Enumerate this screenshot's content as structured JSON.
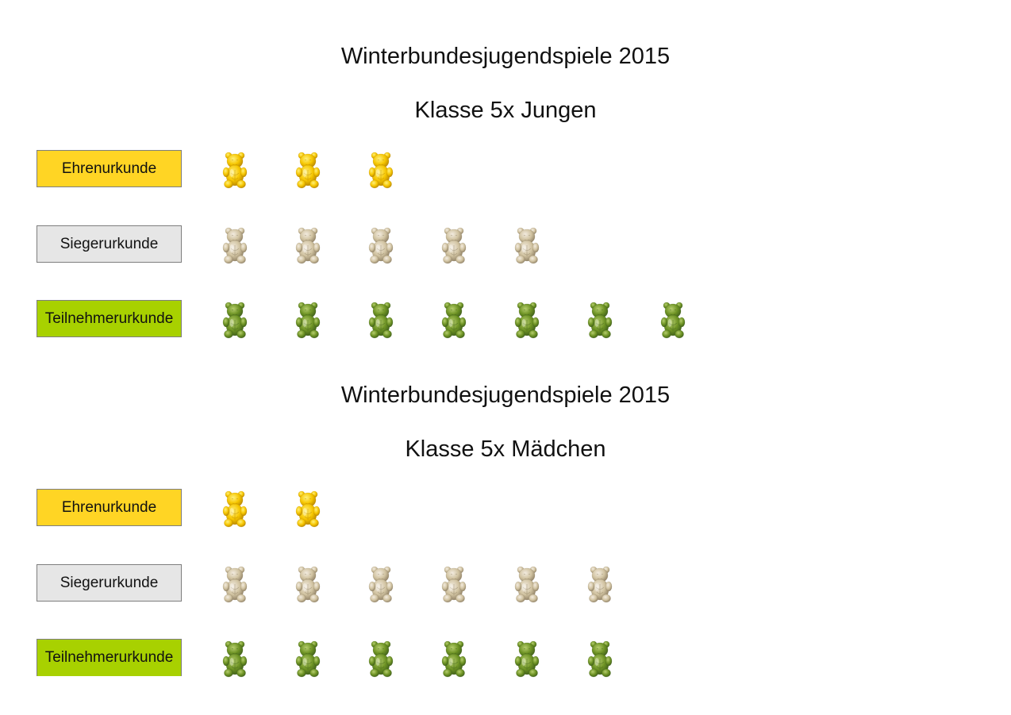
{
  "palette": {
    "gold": "#f6c600",
    "gold_light": "#fff07a",
    "gold_dark": "#b58300",
    "silver": "#d1c3a1",
    "silver_light": "#f3ece0",
    "silver_dark": "#8c7d62",
    "green": "#6e9324",
    "green_light": "#b6ce6e",
    "green_dark": "#3d5d1a",
    "label_gold": "#ffd524",
    "label_silver": "#e6e6e6",
    "label_green": "#a8d100"
  },
  "chart_data": [
    {
      "type": "pictogram",
      "title": "Winterbundesjugendspiele 2015",
      "subtitle": "Klasse 5x Jungen",
      "icon": "gummy-bear-icon",
      "categories": [
        "Ehrenurkunde",
        "Siegerurkunde",
        "Teilnehmerurkunde"
      ],
      "values": [
        3,
        5,
        7
      ],
      "category_colors": [
        "#ffd524",
        "#e6e6e6",
        "#a8d100"
      ]
    },
    {
      "type": "pictogram",
      "title": "Winterbundesjugendspiele 2015",
      "subtitle": "Klasse 5x Mädchen",
      "icon": "gummy-bear-icon",
      "categories": [
        "Ehrenurkunde",
        "Siegerurkunde",
        "Teilnehmerurkunde"
      ],
      "values": [
        2,
        6,
        6
      ],
      "category_colors": [
        "#ffd524",
        "#e6e6e6",
        "#a8d100"
      ]
    }
  ]
}
